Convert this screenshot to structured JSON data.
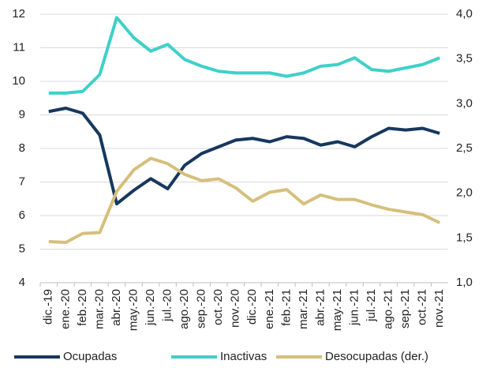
{
  "chart_data": {
    "type": "line",
    "categories": [
      "dic.-19",
      "ene.-20",
      "feb.-20",
      "mar.-20",
      "abr.-20",
      "may.-20",
      "jun.-20",
      "jul.-20",
      "ago.-20",
      "sep.-20",
      "oct.-20",
      "nov.-20",
      "dic.-20",
      "ene.-21",
      "feb.-21",
      "mar.-21",
      "abr.-21",
      "may.-21",
      "jun.-21",
      "jul.-21",
      "ago.-21",
      "sep.-21",
      "oct.-21",
      "nov.-21"
    ],
    "series": [
      {
        "name": "Ocupadas",
        "color": "#17375e",
        "values": [
          9.1,
          9.2,
          9.05,
          8.4,
          6.35,
          6.75,
          7.1,
          6.8,
          7.5,
          7.85,
          8.05,
          8.25,
          8.3,
          8.2,
          8.35,
          8.3,
          8.1,
          8.2,
          8.05,
          8.35,
          8.6,
          8.55,
          8.6,
          8.45
        ]
      },
      {
        "name": "Inactivas",
        "color": "#3fd0c9",
        "values": [
          9.65,
          9.65,
          9.7,
          10.2,
          11.9,
          11.3,
          10.9,
          11.1,
          10.65,
          10.45,
          10.3,
          10.25,
          10.25,
          10.25,
          10.15,
          10.25,
          10.45,
          10.5,
          10.7,
          10.35,
          10.3,
          10.4,
          10.5,
          10.7
        ]
      },
      {
        "name": "Desocupadas (der.)",
        "color": "#d6bf7c",
        "axis": "y2",
        "values": [
          1.46,
          1.45,
          1.55,
          1.56,
          2.02,
          2.26,
          2.39,
          2.33,
          2.21,
          2.14,
          2.16,
          2.06,
          1.91,
          2.01,
          2.04,
          1.88,
          1.98,
          1.93,
          1.93,
          1.87,
          1.82,
          1.79,
          1.76,
          1.67
        ]
      }
    ],
    "ylim": [
      4,
      12
    ],
    "yticks": [
      4,
      5,
      6,
      7,
      8,
      9,
      10,
      11,
      12
    ],
    "y2lim": [
      1,
      4
    ],
    "y2ticks": [
      {
        "value": 1,
        "label": "1,0"
      },
      {
        "value": 1.5,
        "label": "1,5"
      },
      {
        "value": 2,
        "label": "2,0"
      },
      {
        "value": 2.5,
        "label": "2,5"
      },
      {
        "value": 3,
        "label": "3,0"
      },
      {
        "value": 3.5,
        "label": "3,5"
      },
      {
        "value": 4,
        "label": "4,0"
      }
    ],
    "grid": true,
    "legend": "bottom"
  }
}
